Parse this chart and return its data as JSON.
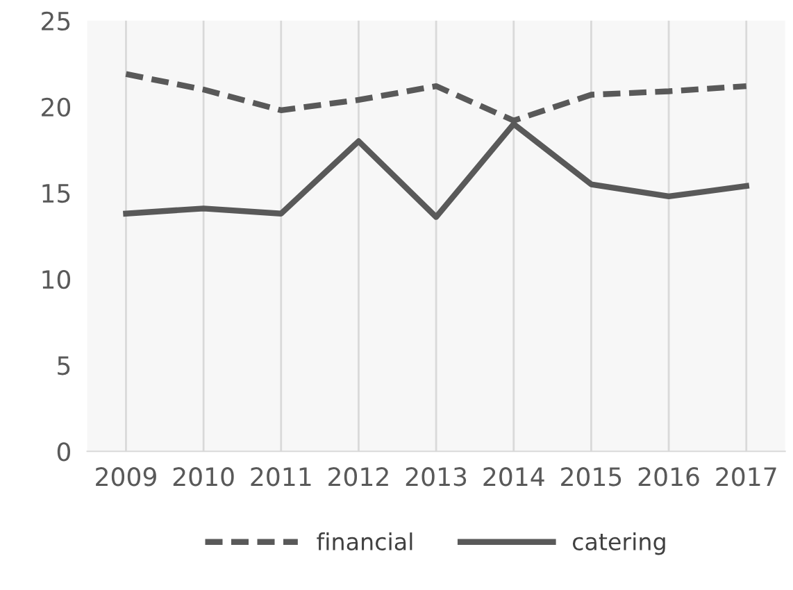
{
  "chart_data": {
    "type": "line",
    "categories": [
      "2009",
      "2010",
      "2011",
      "2012",
      "2013",
      "2014",
      "2015",
      "2016",
      "2017"
    ],
    "series": [
      {
        "name": "financial",
        "color": "#595959",
        "line_style": "dashed",
        "values": [
          21.9,
          21.0,
          19.8,
          20.4,
          21.2,
          19.2,
          20.7,
          20.9,
          21.2
        ]
      },
      {
        "name": "catering",
        "color": "#595959",
        "line_style": "solid",
        "values": [
          13.8,
          14.1,
          13.8,
          18.0,
          13.6,
          19.0,
          15.5,
          14.8,
          15.4
        ]
      }
    ],
    "ylim": [
      0,
      25
    ],
    "yticks": [
      0,
      5,
      10,
      15,
      20,
      25
    ],
    "grid": "x",
    "legend": "bottom",
    "marker": "none"
  }
}
